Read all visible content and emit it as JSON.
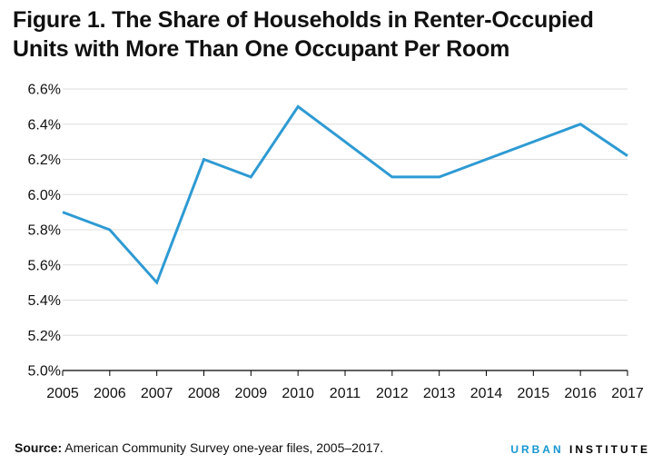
{
  "title_lines": [
    "Figure 1. The Share of Households in Renter-Occupied",
    "Units with More Than One Occupant Per Room"
  ],
  "source": {
    "label": "Source:",
    "text": " American Community Survey one-year files, 2005–2017."
  },
  "brand": {
    "part1": "URBAN",
    "part2": "INSTITUTE"
  },
  "colors": {
    "line": "#2e9ad3",
    "grid": "#dddddd",
    "axis": "#000000",
    "brand_accent": "#1696d2"
  },
  "chart_data": {
    "type": "line",
    "title": "Figure 1. The Share of Households in Renter-Occupied Units with More Than One Occupant Per Room",
    "xlabel": "",
    "ylabel": "",
    "categories": [
      "2005",
      "2006",
      "2007",
      "2008",
      "2009",
      "2010",
      "2011",
      "2012",
      "2013",
      "2014",
      "2015",
      "2016",
      "2017"
    ],
    "series": [
      {
        "name": "Share of households",
        "values": [
          5.9,
          5.8,
          5.5,
          6.2,
          6.1,
          6.5,
          6.3,
          6.1,
          6.1,
          6.2,
          6.3,
          6.4,
          6.22
        ]
      }
    ],
    "ylim": [
      5.0,
      6.6
    ],
    "yticks": [
      5.0,
      5.2,
      5.4,
      5.6,
      5.8,
      6.0,
      6.2,
      6.4,
      6.6
    ],
    "ytick_labels": [
      "5.0%",
      "5.2%",
      "5.4%",
      "5.6%",
      "5.8%",
      "6.0%",
      "6.2%",
      "6.4%",
      "6.6%"
    ],
    "grid": true
  }
}
